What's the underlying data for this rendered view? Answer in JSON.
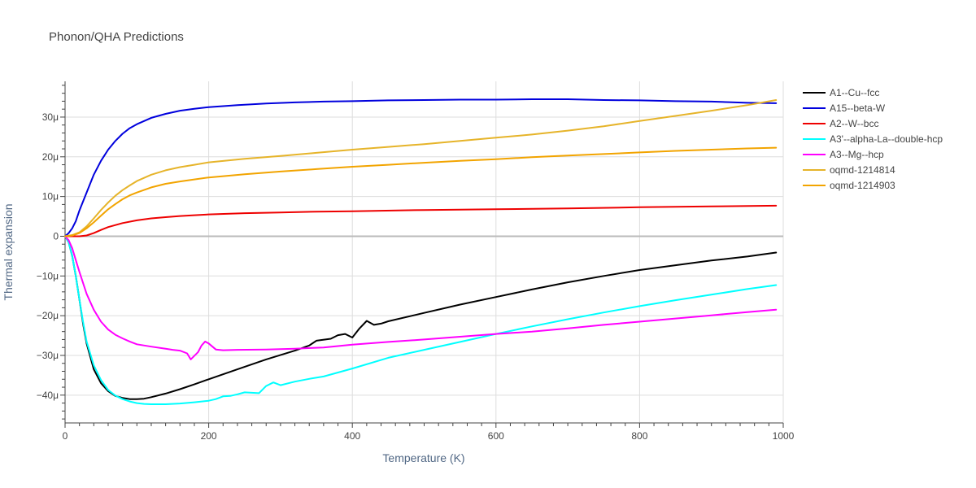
{
  "chart_data": {
    "type": "line",
    "title": "Phonon/QHA Predictions",
    "xlabel": "Temperature (K)",
    "ylabel": "Thermal expansion",
    "xlim": [
      0,
      1000
    ],
    "ylim": [
      -47,
      39
    ],
    "x_ticks": [
      {
        "value": 0,
        "label": "0"
      },
      {
        "value": 200,
        "label": "200"
      },
      {
        "value": 400,
        "label": "400"
      },
      {
        "value": 600,
        "label": "600"
      },
      {
        "value": 800,
        "label": "800"
      },
      {
        "value": 1000,
        "label": "1000"
      }
    ],
    "y_ticks": [
      {
        "value": -40,
        "label": "−40μ"
      },
      {
        "value": -30,
        "label": "−30μ"
      },
      {
        "value": -20,
        "label": "−20μ"
      },
      {
        "value": -10,
        "label": "−10μ"
      },
      {
        "value": 0,
        "label": "0"
      },
      {
        "value": 10,
        "label": "10μ"
      },
      {
        "value": 20,
        "label": "20μ"
      },
      {
        "value": 30,
        "label": "30μ"
      }
    ],
    "grid": true,
    "legend_position": "right",
    "series": [
      {
        "name": "A1--Cu--fcc",
        "color": "#000000",
        "points": [
          [
            0,
            0
          ],
          [
            5,
            -1.5
          ],
          [
            10,
            -5
          ],
          [
            15,
            -10
          ],
          [
            20,
            -16
          ],
          [
            25,
            -22
          ],
          [
            30,
            -27
          ],
          [
            40,
            -33.5
          ],
          [
            50,
            -37
          ],
          [
            60,
            -39
          ],
          [
            70,
            -40.2
          ],
          [
            80,
            -40.7
          ],
          [
            90,
            -41
          ],
          [
            100,
            -41
          ],
          [
            110,
            -40.9
          ],
          [
            120,
            -40.5
          ],
          [
            140,
            -39.6
          ],
          [
            160,
            -38.5
          ],
          [
            180,
            -37.3
          ],
          [
            200,
            -36
          ],
          [
            240,
            -33.5
          ],
          [
            280,
            -31
          ],
          [
            320,
            -28.8
          ],
          [
            340,
            -27.5
          ],
          [
            350,
            -26.3
          ],
          [
            370,
            -25.8
          ],
          [
            380,
            -24.9
          ],
          [
            390,
            -24.6
          ],
          [
            400,
            -25.5
          ],
          [
            410,
            -23.2
          ],
          [
            420,
            -21.3
          ],
          [
            430,
            -22.3
          ],
          [
            440,
            -22
          ],
          [
            450,
            -21.4
          ],
          [
            500,
            -19.3
          ],
          [
            550,
            -17.2
          ],
          [
            600,
            -15.3
          ],
          [
            650,
            -13.4
          ],
          [
            700,
            -11.6
          ],
          [
            750,
            -10
          ],
          [
            800,
            -8.5
          ],
          [
            850,
            -7.3
          ],
          [
            900,
            -6.1
          ],
          [
            950,
            -5.1
          ],
          [
            990,
            -4.1
          ]
        ]
      },
      {
        "name": "A15--beta-W",
        "color": "#0000dd",
        "points": [
          [
            0,
            0
          ],
          [
            5,
            0.8
          ],
          [
            10,
            2
          ],
          [
            15,
            3.8
          ],
          [
            20,
            6.5
          ],
          [
            30,
            11
          ],
          [
            40,
            15.5
          ],
          [
            50,
            19
          ],
          [
            60,
            21.8
          ],
          [
            70,
            24
          ],
          [
            80,
            25.8
          ],
          [
            90,
            27.2
          ],
          [
            100,
            28.2
          ],
          [
            120,
            29.8
          ],
          [
            140,
            30.8
          ],
          [
            160,
            31.6
          ],
          [
            180,
            32.1
          ],
          [
            200,
            32.5
          ],
          [
            240,
            33
          ],
          [
            280,
            33.4
          ],
          [
            320,
            33.7
          ],
          [
            360,
            33.9
          ],
          [
            400,
            34
          ],
          [
            450,
            34.2
          ],
          [
            500,
            34.3
          ],
          [
            550,
            34.4
          ],
          [
            600,
            34.4
          ],
          [
            650,
            34.5
          ],
          [
            700,
            34.5
          ],
          [
            750,
            34.3
          ],
          [
            800,
            34.2
          ],
          [
            850,
            34
          ],
          [
            900,
            33.9
          ],
          [
            950,
            33.6
          ],
          [
            990,
            33.5
          ]
        ]
      },
      {
        "name": "A2--W--bcc",
        "color": "#ee0000",
        "points": [
          [
            0,
            0
          ],
          [
            10,
            0
          ],
          [
            20,
            0
          ],
          [
            30,
            0.2
          ],
          [
            40,
            0.8
          ],
          [
            50,
            1.6
          ],
          [
            60,
            2.3
          ],
          [
            80,
            3.3
          ],
          [
            100,
            4
          ],
          [
            120,
            4.5
          ],
          [
            140,
            4.8
          ],
          [
            160,
            5.1
          ],
          [
            180,
            5.3
          ],
          [
            200,
            5.5
          ],
          [
            250,
            5.8
          ],
          [
            300,
            6
          ],
          [
            350,
            6.2
          ],
          [
            400,
            6.3
          ],
          [
            500,
            6.6
          ],
          [
            600,
            6.8
          ],
          [
            700,
            7
          ],
          [
            800,
            7.3
          ],
          [
            900,
            7.5
          ],
          [
            990,
            7.7
          ]
        ]
      },
      {
        "name": "A3'--alpha-La--double-hcp",
        "color": "#00ffff",
        "points": [
          [
            0,
            0
          ],
          [
            5,
            -1.5
          ],
          [
            10,
            -5
          ],
          [
            15,
            -10
          ],
          [
            20,
            -16
          ],
          [
            25,
            -21.5
          ],
          [
            30,
            -26.5
          ],
          [
            40,
            -32.5
          ],
          [
            50,
            -36.2
          ],
          [
            60,
            -38.7
          ],
          [
            70,
            -40.1
          ],
          [
            80,
            -41
          ],
          [
            90,
            -41.6
          ],
          [
            100,
            -42
          ],
          [
            110,
            -42.2
          ],
          [
            120,
            -42.3
          ],
          [
            140,
            -42.3
          ],
          [
            160,
            -42.1
          ],
          [
            180,
            -41.8
          ],
          [
            200,
            -41.4
          ],
          [
            210,
            -41
          ],
          [
            220,
            -40.3
          ],
          [
            230,
            -40.2
          ],
          [
            240,
            -39.8
          ],
          [
            250,
            -39.3
          ],
          [
            270,
            -39.5
          ],
          [
            280,
            -37.7
          ],
          [
            290,
            -36.8
          ],
          [
            300,
            -37.5
          ],
          [
            320,
            -36.6
          ],
          [
            340,
            -35.9
          ],
          [
            360,
            -35.3
          ],
          [
            400,
            -33.3
          ],
          [
            450,
            -30.6
          ],
          [
            500,
            -28.6
          ],
          [
            550,
            -26.6
          ],
          [
            600,
            -24.6
          ],
          [
            650,
            -22.7
          ],
          [
            700,
            -20.9
          ],
          [
            750,
            -19.2
          ],
          [
            800,
            -17.6
          ],
          [
            850,
            -16.1
          ],
          [
            900,
            -14.7
          ],
          [
            950,
            -13.3
          ],
          [
            990,
            -12.3
          ]
        ]
      },
      {
        "name": "A3--Mg--hcp",
        "color": "#ff00ff",
        "points": [
          [
            0,
            0
          ],
          [
            5,
            -1
          ],
          [
            10,
            -3
          ],
          [
            15,
            -6
          ],
          [
            20,
            -9
          ],
          [
            30,
            -14.5
          ],
          [
            40,
            -18.5
          ],
          [
            50,
            -21.5
          ],
          [
            60,
            -23.5
          ],
          [
            70,
            -24.8
          ],
          [
            80,
            -25.7
          ],
          [
            90,
            -26.5
          ],
          [
            100,
            -27.2
          ],
          [
            120,
            -27.8
          ],
          [
            140,
            -28.3
          ],
          [
            150,
            -28.6
          ],
          [
            160,
            -28.8
          ],
          [
            170,
            -29.5
          ],
          [
            175,
            -31
          ],
          [
            185,
            -29.2
          ],
          [
            190,
            -27.5
          ],
          [
            195,
            -26.5
          ],
          [
            200,
            -27
          ],
          [
            210,
            -28.5
          ],
          [
            220,
            -28.7
          ],
          [
            240,
            -28.6
          ],
          [
            280,
            -28.5
          ],
          [
            320,
            -28.3
          ],
          [
            360,
            -28
          ],
          [
            400,
            -27.3
          ],
          [
            450,
            -26.6
          ],
          [
            500,
            -26
          ],
          [
            550,
            -25.3
          ],
          [
            600,
            -24.6
          ],
          [
            650,
            -24
          ],
          [
            700,
            -23.2
          ],
          [
            750,
            -22.3
          ],
          [
            800,
            -21.5
          ],
          [
            850,
            -20.7
          ],
          [
            900,
            -19.9
          ],
          [
            950,
            -19.1
          ],
          [
            990,
            -18.5
          ]
        ]
      },
      {
        "name": "oqmd-1214814",
        "color": "#e6b42a",
        "points": [
          [
            0,
            0
          ],
          [
            10,
            0.3
          ],
          [
            20,
            1
          ],
          [
            30,
            2.5
          ],
          [
            40,
            4.5
          ],
          [
            50,
            6.6
          ],
          [
            60,
            8.5
          ],
          [
            70,
            10.2
          ],
          [
            80,
            11.6
          ],
          [
            90,
            12.8
          ],
          [
            100,
            13.9
          ],
          [
            120,
            15.5
          ],
          [
            140,
            16.6
          ],
          [
            160,
            17.4
          ],
          [
            180,
            18
          ],
          [
            200,
            18.6
          ],
          [
            250,
            19.5
          ],
          [
            300,
            20.2
          ],
          [
            350,
            21
          ],
          [
            400,
            21.8
          ],
          [
            450,
            22.5
          ],
          [
            500,
            23.2
          ],
          [
            550,
            24
          ],
          [
            600,
            24.8
          ],
          [
            650,
            25.6
          ],
          [
            700,
            26.6
          ],
          [
            750,
            27.7
          ],
          [
            800,
            29
          ],
          [
            850,
            30.3
          ],
          [
            900,
            31.6
          ],
          [
            950,
            33
          ],
          [
            990,
            34.3
          ]
        ]
      },
      {
        "name": "oqmd-1214903",
        "color": "#f2a400",
        "points": [
          [
            0,
            0
          ],
          [
            10,
            0.2
          ],
          [
            20,
            0.8
          ],
          [
            30,
            2
          ],
          [
            40,
            3.5
          ],
          [
            50,
            5.2
          ],
          [
            60,
            6.8
          ],
          [
            70,
            8.1
          ],
          [
            80,
            9.3
          ],
          [
            90,
            10.3
          ],
          [
            100,
            11
          ],
          [
            120,
            12.3
          ],
          [
            140,
            13.2
          ],
          [
            160,
            13.8
          ],
          [
            180,
            14.3
          ],
          [
            200,
            14.8
          ],
          [
            250,
            15.6
          ],
          [
            300,
            16.3
          ],
          [
            350,
            16.9
          ],
          [
            400,
            17.5
          ],
          [
            450,
            18
          ],
          [
            500,
            18.5
          ],
          [
            550,
            19
          ],
          [
            600,
            19.4
          ],
          [
            650,
            19.9
          ],
          [
            700,
            20.3
          ],
          [
            750,
            20.7
          ],
          [
            800,
            21.1
          ],
          [
            850,
            21.5
          ],
          [
            900,
            21.8
          ],
          [
            950,
            22.1
          ],
          [
            990,
            22.3
          ]
        ]
      }
    ]
  }
}
